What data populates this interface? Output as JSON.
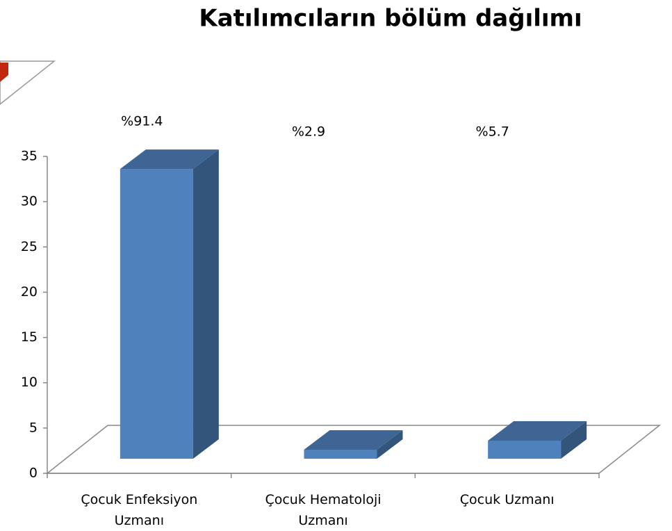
{
  "chart_data": {
    "type": "bar3d",
    "title": "Katılımcıların bölüm dağılımı",
    "categories": [
      "Çocuk Enfeksiyon Uzmanı",
      "Çocuk Hematoloji Uzmanı",
      "Çocuk Uzmanı"
    ],
    "values": [
      32,
      1,
      2
    ],
    "percent_labels": [
      "%91.4",
      "%2.9",
      "%5.7"
    ],
    "color": "#4f81bd",
    "ylim": [
      0,
      35
    ],
    "yticks": [
      0,
      5,
      10,
      15,
      20,
      25,
      30,
      35
    ]
  }
}
